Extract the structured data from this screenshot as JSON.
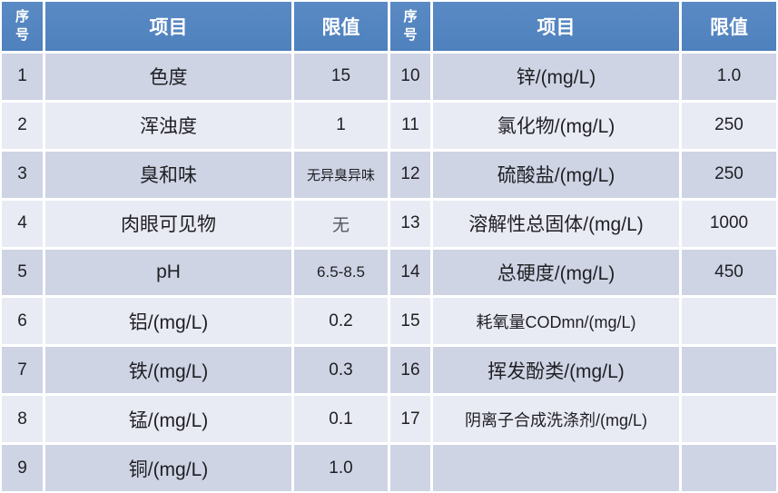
{
  "colors": {
    "header_bg": "#4e81bd",
    "header_bg_top": "#5a8ac4",
    "band_dark": "#ced4e4",
    "band_light": "#e9ebf4",
    "grid_gap": "#ffffff",
    "text": "#1f1f24",
    "muted_text": "#54555f",
    "header_text": "#ffffff"
  },
  "headers": {
    "no": "序\n号",
    "item": "项目",
    "limit": "限值"
  },
  "left_rows": [
    {
      "no": "1",
      "item": "色度",
      "limit": "15"
    },
    {
      "no": "2",
      "item": "浑浊度",
      "limit": "1"
    },
    {
      "no": "3",
      "item": "臭和味",
      "limit": "无异臭异味"
    },
    {
      "no": "4",
      "item": "肉眼可见物",
      "limit": "无"
    },
    {
      "no": "5",
      "item": "pH",
      "limit": "6.5-8.5"
    },
    {
      "no": "6",
      "item": "铝/(mg/L)",
      "limit": "0.2"
    },
    {
      "no": "7",
      "item": "铁/(mg/L)",
      "limit": "0.3"
    },
    {
      "no": "8",
      "item": "锰/(mg/L)",
      "limit": "0.1"
    },
    {
      "no": "9",
      "item": "铜/(mg/L)",
      "limit": "1.0"
    }
  ],
  "right_rows": [
    {
      "no": "10",
      "item": "锌/(mg/L)",
      "limit": "1.0"
    },
    {
      "no": "11",
      "item": "氯化物/(mg/L)",
      "limit": "250"
    },
    {
      "no": "12",
      "item": "硫酸盐/(mg/L)",
      "limit": "250"
    },
    {
      "no": "13",
      "item": "溶解性总固体/(mg/L)",
      "limit": "1000"
    },
    {
      "no": "14",
      "item": "总硬度/(mg/L)",
      "limit": "450"
    },
    {
      "no": "15",
      "item": "耗氧量CODmn/(mg/L)",
      "limit": ""
    },
    {
      "no": "16",
      "item": "挥发酚类/(mg/L)",
      "limit": ""
    },
    {
      "no": "17",
      "item": "阴离子合成洗涤剂/(mg/L)",
      "limit": ""
    },
    {
      "no": "",
      "item": "",
      "limit": ""
    }
  ]
}
